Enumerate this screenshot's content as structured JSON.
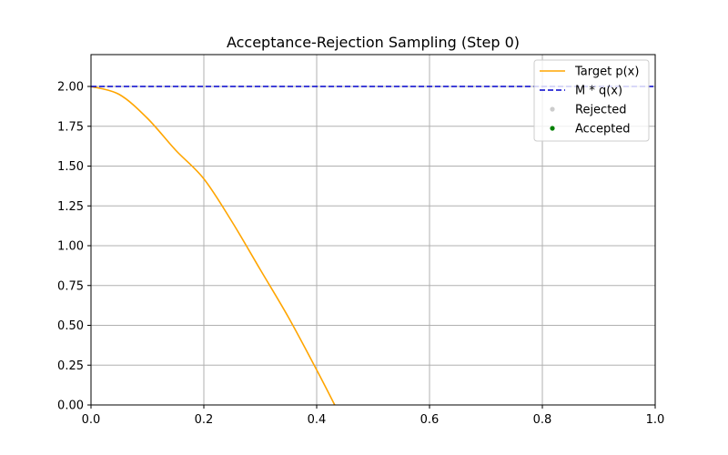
{
  "chart_data": {
    "type": "line",
    "title": "Acceptance-Rejection Sampling (Step 0)",
    "xlabel": "",
    "ylabel": "",
    "xlim": [
      0.0,
      1.0
    ],
    "ylim": [
      0.0,
      2.2
    ],
    "xticks": [
      0.0,
      0.2,
      0.4,
      0.6,
      0.8,
      1.0
    ],
    "xtick_labels": [
      "0.0",
      "0.2",
      "0.4",
      "0.6",
      "0.8",
      "1.0"
    ],
    "yticks": [
      0.0,
      0.25,
      0.5,
      0.75,
      1.0,
      1.25,
      1.5,
      1.75,
      2.0
    ],
    "ytick_labels": [
      "0.00",
      "0.25",
      "0.50",
      "0.75",
      "1.00",
      "1.25",
      "1.50",
      "1.75",
      "2.00"
    ],
    "grid": true,
    "legend_position": "top-right",
    "series": [
      {
        "name": "Target p(x)",
        "style": "solid-line",
        "color": "#ffa500",
        "x": [
          0.0,
          0.05,
          0.1,
          0.15,
          0.2,
          0.25,
          0.3,
          0.35,
          0.4,
          0.432
        ],
        "y": [
          2.0,
          1.95,
          1.8,
          1.6,
          1.42,
          1.15,
          0.85,
          0.55,
          0.22,
          0.0
        ]
      },
      {
        "name": "M * q(x)",
        "style": "dashed-line",
        "color": "#0000cc",
        "x": [
          0.0,
          1.0
        ],
        "y": [
          2.0,
          2.0
        ]
      },
      {
        "name": "Rejected",
        "style": "scatter",
        "color": "#cccccc",
        "x": [],
        "y": []
      },
      {
        "name": "Accepted",
        "style": "scatter",
        "color": "#008000",
        "x": [],
        "y": []
      }
    ]
  }
}
